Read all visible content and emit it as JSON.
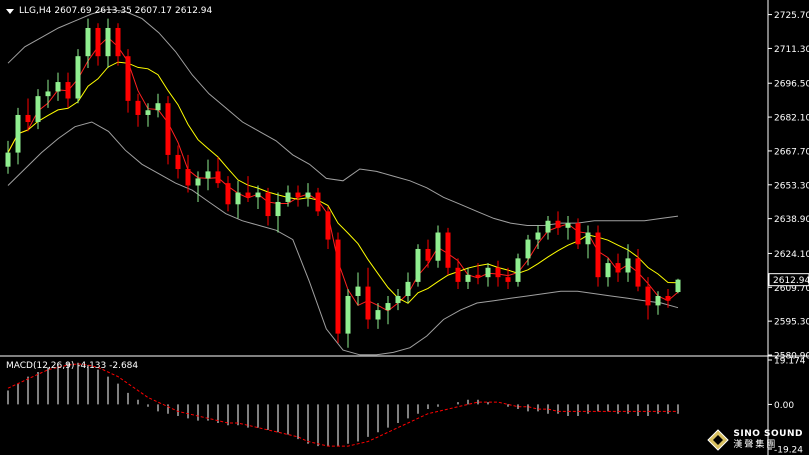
{
  "header": {
    "symbol": "LLG,H4",
    "open": "2607.69",
    "high": "2613.35",
    "low": "2607.17",
    "close": "2612.94"
  },
  "macd": {
    "label": "MACD(12,26,9)",
    "main": "-4.133",
    "signal": "-2.684",
    "axis_ticks": [
      "19.174",
      "0.00",
      "-19.24"
    ]
  },
  "price_axis": {
    "ticks": [
      "2725.70",
      "2711.30",
      "2696.50",
      "2682.10",
      "2667.70",
      "2653.30",
      "2638.90",
      "2624.10",
      "2609.70",
      "2595.30",
      "2580.90"
    ],
    "current_price": "2612.94"
  },
  "colors": {
    "background": "#000000",
    "bull": "#90ee90",
    "bear": "#ff0000",
    "ma_fast": "#ff2020",
    "ma_slow": "#ffff00",
    "bands": "#a0a0a0",
    "macd_hist": "#ffffff",
    "macd_signal": "#ff0000"
  },
  "logo": {
    "icon": "diamond-logo-icon",
    "brand_en": "SINO SOUND",
    "brand_cn": "漢聲集團"
  },
  "chart_data": {
    "type": "candlestick",
    "symbol": "LLG",
    "timeframe": "H4",
    "ylim": [
      2580.9,
      2728.5
    ],
    "ohlc": [
      [
        2661,
        2672,
        2658,
        2667
      ],
      [
        2667,
        2686,
        2662,
        2683
      ],
      [
        2683,
        2690,
        2676,
        2680
      ],
      [
        2680,
        2694,
        2677,
        2691
      ],
      [
        2691,
        2698,
        2686,
        2693
      ],
      [
        2693,
        2701,
        2689,
        2697
      ],
      [
        2697,
        2701,
        2686,
        2690
      ],
      [
        2690,
        2711,
        2688,
        2708
      ],
      [
        2708,
        2724,
        2703,
        2720
      ],
      [
        2720,
        2722,
        2704,
        2708
      ],
      [
        2708,
        2724,
        2703,
        2720
      ],
      [
        2720,
        2722,
        2704,
        2708
      ],
      [
        2708,
        2711,
        2684,
        2689
      ],
      [
        2689,
        2692,
        2678,
        2683
      ],
      [
        2683,
        2688,
        2678,
        2685
      ],
      [
        2685,
        2692,
        2682,
        2688
      ],
      [
        2688,
        2691,
        2662,
        2666
      ],
      [
        2666,
        2670,
        2656,
        2660
      ],
      [
        2660,
        2666,
        2650,
        2653
      ],
      [
        2653,
        2659,
        2646,
        2656
      ],
      [
        2656,
        2664,
        2651,
        2659
      ],
      [
        2659,
        2665,
        2652,
        2654
      ],
      [
        2654,
        2657,
        2642,
        2645
      ],
      [
        2645,
        2655,
        2639,
        2650
      ],
      [
        2650,
        2657,
        2646,
        2648
      ],
      [
        2648,
        2653,
        2643,
        2650
      ],
      [
        2650,
        2652,
        2636,
        2640
      ],
      [
        2640,
        2650,
        2633,
        2646
      ],
      [
        2646,
        2653,
        2644,
        2650
      ],
      [
        2650,
        2653,
        2644,
        2648
      ],
      [
        2648,
        2654,
        2644,
        2650
      ],
      [
        2650,
        2652,
        2640,
        2642
      ],
      [
        2642,
        2644,
        2626,
        2630
      ],
      [
        2630,
        2633,
        2586,
        2590
      ],
      [
        2590,
        2609,
        2584,
        2606
      ],
      [
        2606,
        2616,
        2602,
        2610
      ],
      [
        2610,
        2618,
        2592,
        2596
      ],
      [
        2596,
        2603,
        2592,
        2600
      ],
      [
        2600,
        2606,
        2594,
        2603
      ],
      [
        2603,
        2609,
        2600,
        2606
      ],
      [
        2606,
        2616,
        2603,
        2612
      ],
      [
        2612,
        2628,
        2610,
        2626
      ],
      [
        2626,
        2630,
        2618,
        2621
      ],
      [
        2621,
        2636,
        2618,
        2633
      ],
      [
        2633,
        2635,
        2615,
        2618
      ],
      [
        2618,
        2622,
        2609,
        2612
      ],
      [
        2612,
        2618,
        2609,
        2615
      ],
      [
        2615,
        2620,
        2611,
        2614
      ],
      [
        2614,
        2620,
        2610,
        2618
      ],
      [
        2618,
        2621,
        2610,
        2614
      ],
      [
        2614,
        2618,
        2609,
        2612
      ],
      [
        2612,
        2624,
        2610,
        2622
      ],
      [
        2622,
        2632,
        2619,
        2630
      ],
      [
        2630,
        2636,
        2626,
        2633
      ],
      [
        2633,
        2640,
        2630,
        2638
      ],
      [
        2638,
        2642,
        2632,
        2635
      ],
      [
        2635,
        2640,
        2630,
        2637
      ],
      [
        2637,
        2639,
        2626,
        2628
      ],
      [
        2628,
        2636,
        2622,
        2633
      ],
      [
        2633,
        2636,
        2610,
        2614
      ],
      [
        2614,
        2622,
        2610,
        2620
      ],
      [
        2620,
        2624,
        2612,
        2616
      ],
      [
        2616,
        2628,
        2612,
        2622
      ],
      [
        2622,
        2626,
        2608,
        2610
      ],
      [
        2610,
        2614,
        2596,
        2602
      ],
      [
        2602,
        2608,
        2598,
        2606
      ],
      [
        2606,
        2609,
        2601,
        2604
      ],
      [
        2607.69,
        2613.35,
        2607.17,
        2612.94
      ]
    ],
    "bands_upper": [
      2705,
      2712,
      2716,
      2720,
      2723,
      2726,
      2728,
      2727,
      2724,
      2718,
      2710,
      2700,
      2692,
      2686,
      2680,
      2676,
      2672,
      2666,
      2662,
      2656,
      2655,
      2660,
      2659,
      2657,
      2655,
      2652,
      2648,
      2645,
      2642,
      2639,
      2637,
      2636,
      2636,
      2637,
      2637,
      2638,
      2638,
      2638,
      2638,
      2639,
      2640
    ],
    "bands_lower": [
      2653,
      2660,
      2667,
      2673,
      2678,
      2680,
      2676,
      2668,
      2662,
      2658,
      2654,
      2651,
      2646,
      2641,
      2638,
      2636,
      2634,
      2630,
      2612,
      2592,
      2583,
      2581,
      2581,
      2582,
      2584,
      2589,
      2596,
      2600,
      2603,
      2604,
      2605,
      2606,
      2607,
      2608,
      2608,
      2607,
      2606,
      2605,
      2604,
      2603,
      2601
    ],
    "macd_histogram": [
      6,
      9,
      12,
      14,
      16,
      17,
      18,
      18,
      17,
      15,
      12,
      9,
      5,
      2,
      -1,
      -3,
      -4,
      -5,
      -6,
      -7,
      -7,
      -8,
      -9,
      -9,
      -10,
      -10,
      -11,
      -12,
      -13,
      -15,
      -17,
      -18,
      -18,
      -18,
      -17,
      -16,
      -14,
      -12,
      -10,
      -8,
      -6,
      -4,
      -2,
      -1,
      0,
      1,
      2,
      2,
      1,
      0,
      -1,
      -2,
      -3,
      -3,
      -4,
      -4,
      -5,
      -5,
      -4,
      -3,
      -3,
      -4,
      -4,
      -5,
      -5,
      -4,
      -4,
      -4
    ],
    "macd_signal": [
      7,
      9,
      11,
      13,
      15,
      16,
      17,
      17.5,
      17,
      16,
      14,
      12,
      9,
      6,
      3,
      1,
      -1,
      -3,
      -4,
      -5,
      -6,
      -7,
      -8,
      -8,
      -9,
      -10,
      -11,
      -12,
      -13,
      -14,
      -16,
      -17,
      -18,
      -18,
      -18,
      -17,
      -16,
      -14,
      -12,
      -10,
      -8,
      -6,
      -4,
      -3,
      -2,
      -1,
      0,
      1,
      1,
      1,
      0,
      -1,
      -1,
      -2,
      -2,
      -3,
      -3,
      -3,
      -3,
      -3,
      -3,
      -3,
      -3,
      -3,
      -3,
      -3,
      -3,
      -3
    ]
  }
}
